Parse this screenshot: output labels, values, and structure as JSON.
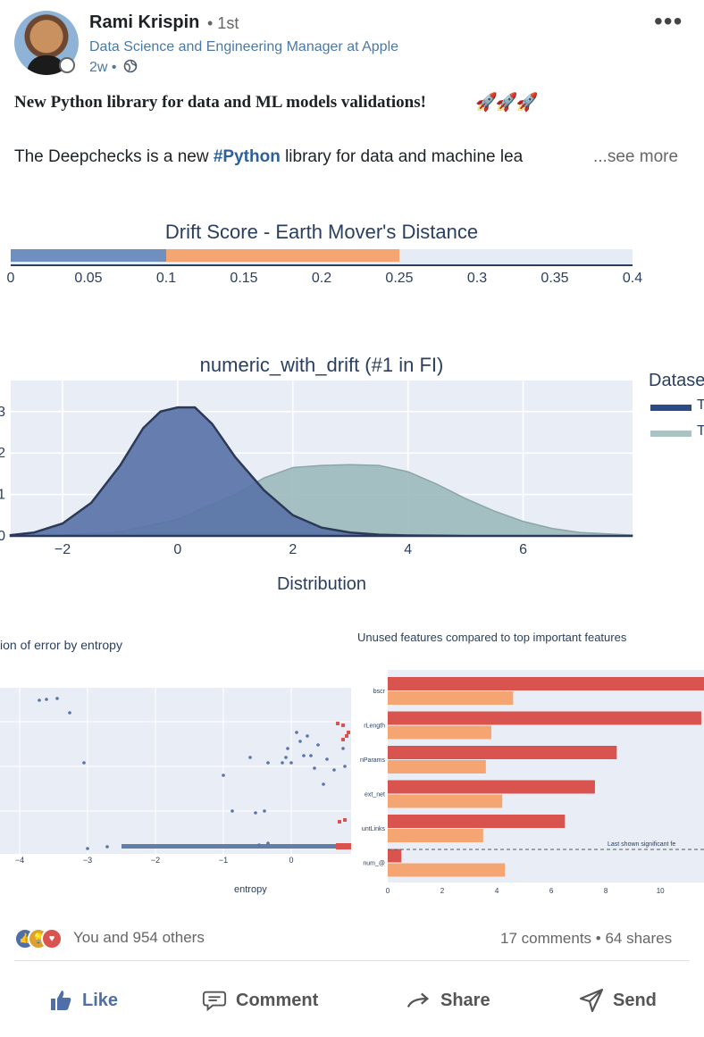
{
  "post": {
    "author": "Rami Krispin",
    "degree": "• 1st",
    "headline": "Data Science and Engineering Manager at Apple",
    "time": "2w •",
    "title": "New Python library for data and ML models validations!",
    "body_prefix": "The Deepchecks is a new ",
    "body_tag": "#Python",
    "body_suffix": " library for data and machine lea",
    "see_more": "...see more"
  },
  "drift_chart": {
    "title": "Drift Score - Earth Mover's Distance",
    "ticks": [
      "0",
      "0.05",
      "0.1",
      "0.15",
      "0.2",
      "0.25",
      "0.3",
      "0.35",
      "0.4"
    ],
    "colors": {
      "low": "#6f8fbf",
      "mid": "#f5a572",
      "bg": "#e6ecf5"
    }
  },
  "chart_data": [
    {
      "type": "bar",
      "title": "Drift Score - Earth Mover's Distance",
      "xlim": [
        0,
        0.4
      ],
      "segments": [
        {
          "from": 0,
          "to": 0.1,
          "color": "#6f8fbf"
        },
        {
          "from": 0.1,
          "to": 0.25,
          "color": "#f5a572"
        }
      ]
    },
    {
      "type": "area",
      "title": "numeric_with_drift (#1 in FI)",
      "xlabel": "Distribution",
      "legend_title": "Datase",
      "legend_entries": [
        "T",
        "T"
      ],
      "xlim": [
        -2.9,
        7.9
      ],
      "ylim": [
        0,
        0.375
      ],
      "x_ticks": [
        "−2",
        "0",
        "2",
        "4",
        "6"
      ],
      "y_ticks": [
        "0",
        "1",
        "2",
        "3"
      ],
      "series": [
        {
          "x": [
            -2.9,
            -2.5,
            -2,
            -1.5,
            -1,
            -0.6,
            -0.3,
            0,
            0.3,
            0.6,
            1,
            1.5,
            2,
            2.5,
            3,
            3.5,
            4,
            5,
            6,
            7,
            7.9
          ],
          "y": [
            0.002,
            0.008,
            0.03,
            0.08,
            0.17,
            0.26,
            0.3,
            0.31,
            0.31,
            0.27,
            0.19,
            0.11,
            0.05,
            0.02,
            0.008,
            0.003,
            0.001,
            0,
            0,
            0,
            0
          ],
          "color": "#5a74a8"
        },
        {
          "x": [
            -2.9,
            -2,
            -1,
            0,
            1,
            1.5,
            2,
            2.5,
            3,
            3.5,
            4,
            4.5,
            5,
            5.5,
            6,
            6.5,
            7,
            7.9
          ],
          "y": [
            0,
            0.002,
            0.01,
            0.04,
            0.1,
            0.14,
            0.165,
            0.17,
            0.172,
            0.17,
            0.155,
            0.125,
            0.09,
            0.06,
            0.035,
            0.018,
            0.008,
            0.002
          ],
          "color": "#96b6b8"
        }
      ]
    },
    {
      "type": "scatter",
      "title": "ion of error by entropy",
      "xlabel": "entropy",
      "x_ticks": [
        "−4",
        "−3",
        "−2",
        "−1",
        "0"
      ]
    },
    {
      "type": "bar",
      "title": "Unused features compared to top important features",
      "categories": [
        "bscr",
        "rLength",
        "nParams",
        "ext_net",
        "untLinks",
        "num_@"
      ],
      "series": [
        {
          "values": [
            11.6,
            11.5,
            8.4,
            7.6,
            6.5,
            0.5
          ],
          "color": "#d9534f"
        },
        {
          "values": [
            4.6,
            3.8,
            3.6,
            4.2,
            3.5,
            4.3
          ],
          "color": "#f5a572"
        }
      ],
      "annotation": "Last shown significant fe",
      "x_ticks": [
        "0",
        "2",
        "4",
        "6",
        "8",
        "10"
      ]
    }
  ],
  "social": {
    "reactions_text": "You and 954 others",
    "counts_text": "17 comments • 64 shares"
  },
  "actions": {
    "like": "Like",
    "comment": "Comment",
    "share": "Share",
    "send": "Send"
  }
}
